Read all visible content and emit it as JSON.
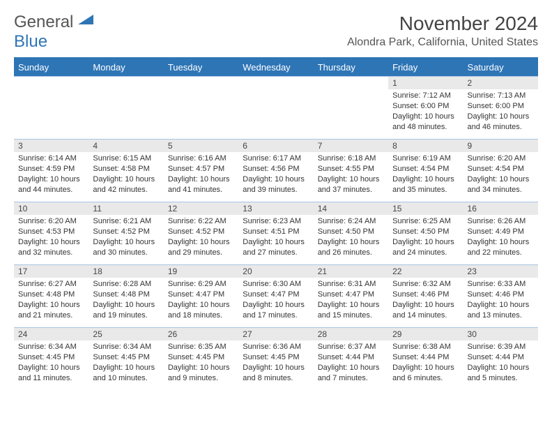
{
  "logo": {
    "word1": "General",
    "word2": "Blue"
  },
  "title": "November 2024",
  "location": "Alondra Park, California, United States",
  "day_headers": [
    "Sunday",
    "Monday",
    "Tuesday",
    "Wednesday",
    "Thursday",
    "Friday",
    "Saturday"
  ],
  "colors": {
    "header_bg": "#2e75b6",
    "header_fg": "#ffffff",
    "grid_border": "#a9c5e3",
    "daynum_bg": "#e9e9e9",
    "logo_blue": "#2e75b6"
  },
  "weeks": [
    [
      null,
      null,
      null,
      null,
      null,
      {
        "n": "1",
        "sunrise": "Sunrise: 7:12 AM",
        "sunset": "Sunset: 6:00 PM",
        "dl1": "Daylight: 10 hours",
        "dl2": "and 48 minutes."
      },
      {
        "n": "2",
        "sunrise": "Sunrise: 7:13 AM",
        "sunset": "Sunset: 6:00 PM",
        "dl1": "Daylight: 10 hours",
        "dl2": "and 46 minutes."
      }
    ],
    [
      {
        "n": "3",
        "sunrise": "Sunrise: 6:14 AM",
        "sunset": "Sunset: 4:59 PM",
        "dl1": "Daylight: 10 hours",
        "dl2": "and 44 minutes."
      },
      {
        "n": "4",
        "sunrise": "Sunrise: 6:15 AM",
        "sunset": "Sunset: 4:58 PM",
        "dl1": "Daylight: 10 hours",
        "dl2": "and 42 minutes."
      },
      {
        "n": "5",
        "sunrise": "Sunrise: 6:16 AM",
        "sunset": "Sunset: 4:57 PM",
        "dl1": "Daylight: 10 hours",
        "dl2": "and 41 minutes."
      },
      {
        "n": "6",
        "sunrise": "Sunrise: 6:17 AM",
        "sunset": "Sunset: 4:56 PM",
        "dl1": "Daylight: 10 hours",
        "dl2": "and 39 minutes."
      },
      {
        "n": "7",
        "sunrise": "Sunrise: 6:18 AM",
        "sunset": "Sunset: 4:55 PM",
        "dl1": "Daylight: 10 hours",
        "dl2": "and 37 minutes."
      },
      {
        "n": "8",
        "sunrise": "Sunrise: 6:19 AM",
        "sunset": "Sunset: 4:54 PM",
        "dl1": "Daylight: 10 hours",
        "dl2": "and 35 minutes."
      },
      {
        "n": "9",
        "sunrise": "Sunrise: 6:20 AM",
        "sunset": "Sunset: 4:54 PM",
        "dl1": "Daylight: 10 hours",
        "dl2": "and 34 minutes."
      }
    ],
    [
      {
        "n": "10",
        "sunrise": "Sunrise: 6:20 AM",
        "sunset": "Sunset: 4:53 PM",
        "dl1": "Daylight: 10 hours",
        "dl2": "and 32 minutes."
      },
      {
        "n": "11",
        "sunrise": "Sunrise: 6:21 AM",
        "sunset": "Sunset: 4:52 PM",
        "dl1": "Daylight: 10 hours",
        "dl2": "and 30 minutes."
      },
      {
        "n": "12",
        "sunrise": "Sunrise: 6:22 AM",
        "sunset": "Sunset: 4:52 PM",
        "dl1": "Daylight: 10 hours",
        "dl2": "and 29 minutes."
      },
      {
        "n": "13",
        "sunrise": "Sunrise: 6:23 AM",
        "sunset": "Sunset: 4:51 PM",
        "dl1": "Daylight: 10 hours",
        "dl2": "and 27 minutes."
      },
      {
        "n": "14",
        "sunrise": "Sunrise: 6:24 AM",
        "sunset": "Sunset: 4:50 PM",
        "dl1": "Daylight: 10 hours",
        "dl2": "and 26 minutes."
      },
      {
        "n": "15",
        "sunrise": "Sunrise: 6:25 AM",
        "sunset": "Sunset: 4:50 PM",
        "dl1": "Daylight: 10 hours",
        "dl2": "and 24 minutes."
      },
      {
        "n": "16",
        "sunrise": "Sunrise: 6:26 AM",
        "sunset": "Sunset: 4:49 PM",
        "dl1": "Daylight: 10 hours",
        "dl2": "and 22 minutes."
      }
    ],
    [
      {
        "n": "17",
        "sunrise": "Sunrise: 6:27 AM",
        "sunset": "Sunset: 4:48 PM",
        "dl1": "Daylight: 10 hours",
        "dl2": "and 21 minutes."
      },
      {
        "n": "18",
        "sunrise": "Sunrise: 6:28 AM",
        "sunset": "Sunset: 4:48 PM",
        "dl1": "Daylight: 10 hours",
        "dl2": "and 19 minutes."
      },
      {
        "n": "19",
        "sunrise": "Sunrise: 6:29 AM",
        "sunset": "Sunset: 4:47 PM",
        "dl1": "Daylight: 10 hours",
        "dl2": "and 18 minutes."
      },
      {
        "n": "20",
        "sunrise": "Sunrise: 6:30 AM",
        "sunset": "Sunset: 4:47 PM",
        "dl1": "Daylight: 10 hours",
        "dl2": "and 17 minutes."
      },
      {
        "n": "21",
        "sunrise": "Sunrise: 6:31 AM",
        "sunset": "Sunset: 4:47 PM",
        "dl1": "Daylight: 10 hours",
        "dl2": "and 15 minutes."
      },
      {
        "n": "22",
        "sunrise": "Sunrise: 6:32 AM",
        "sunset": "Sunset: 4:46 PM",
        "dl1": "Daylight: 10 hours",
        "dl2": "and 14 minutes."
      },
      {
        "n": "23",
        "sunrise": "Sunrise: 6:33 AM",
        "sunset": "Sunset: 4:46 PM",
        "dl1": "Daylight: 10 hours",
        "dl2": "and 13 minutes."
      }
    ],
    [
      {
        "n": "24",
        "sunrise": "Sunrise: 6:34 AM",
        "sunset": "Sunset: 4:45 PM",
        "dl1": "Daylight: 10 hours",
        "dl2": "and 11 minutes."
      },
      {
        "n": "25",
        "sunrise": "Sunrise: 6:34 AM",
        "sunset": "Sunset: 4:45 PM",
        "dl1": "Daylight: 10 hours",
        "dl2": "and 10 minutes."
      },
      {
        "n": "26",
        "sunrise": "Sunrise: 6:35 AM",
        "sunset": "Sunset: 4:45 PM",
        "dl1": "Daylight: 10 hours",
        "dl2": "and 9 minutes."
      },
      {
        "n": "27",
        "sunrise": "Sunrise: 6:36 AM",
        "sunset": "Sunset: 4:45 PM",
        "dl1": "Daylight: 10 hours",
        "dl2": "and 8 minutes."
      },
      {
        "n": "28",
        "sunrise": "Sunrise: 6:37 AM",
        "sunset": "Sunset: 4:44 PM",
        "dl1": "Daylight: 10 hours",
        "dl2": "and 7 minutes."
      },
      {
        "n": "29",
        "sunrise": "Sunrise: 6:38 AM",
        "sunset": "Sunset: 4:44 PM",
        "dl1": "Daylight: 10 hours",
        "dl2": "and 6 minutes."
      },
      {
        "n": "30",
        "sunrise": "Sunrise: 6:39 AM",
        "sunset": "Sunset: 4:44 PM",
        "dl1": "Daylight: 10 hours",
        "dl2": "and 5 minutes."
      }
    ]
  ]
}
